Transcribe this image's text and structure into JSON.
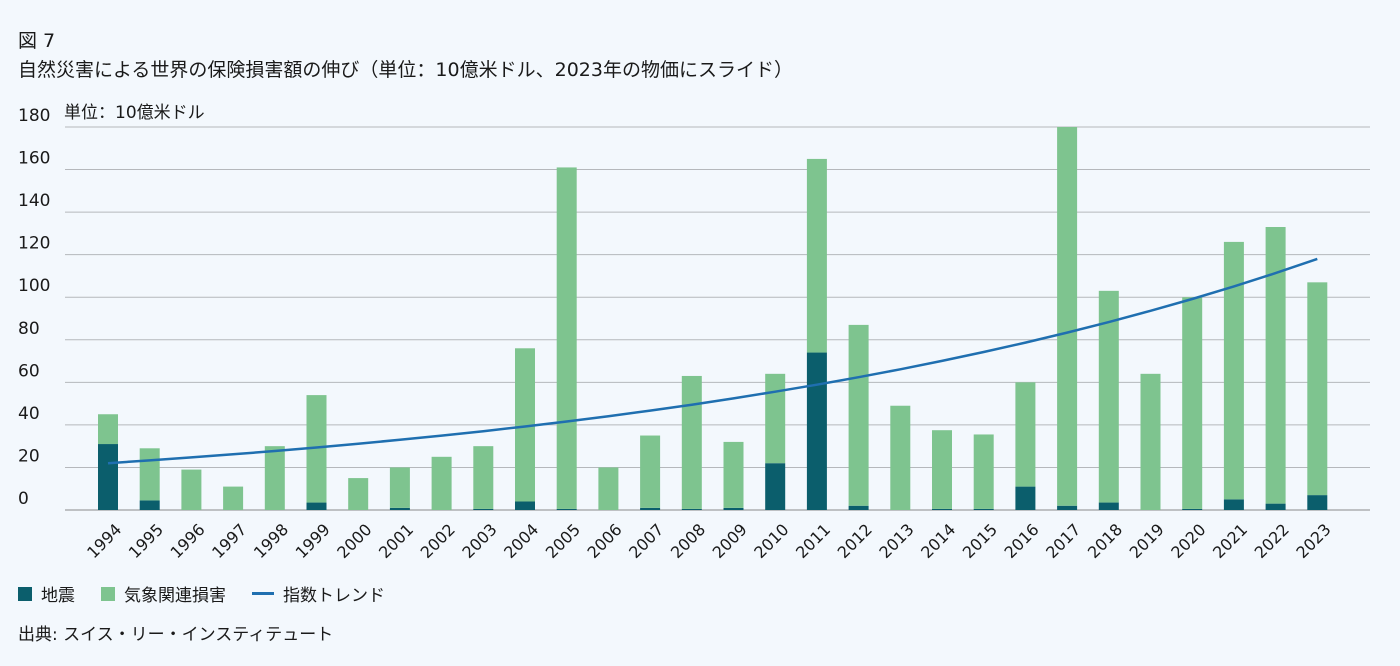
{
  "figure_label": "図 7",
  "title": "自然災害による世界の保険損害額の伸び（単位：10億米ドル、2023年の物価にスライド）",
  "source": "出典: スイス・リー・インスティテュート",
  "chart_data": {
    "type": "bar",
    "stacked": true,
    "unit_label": "単位：10億米ドル",
    "ylim": [
      0,
      180
    ],
    "yticks": [
      0,
      20,
      40,
      60,
      80,
      100,
      120,
      140,
      160,
      180
    ],
    "grid": true,
    "legend_position": "bottom-left",
    "categories": [
      "1994",
      "1995",
      "1996",
      "1997",
      "1998",
      "1999",
      "2000",
      "2001",
      "2002",
      "2003",
      "2004",
      "2005",
      "2006",
      "2007",
      "2008",
      "2009",
      "2010",
      "2011",
      "2012",
      "2013",
      "2014",
      "2015",
      "2016",
      "2017",
      "2018",
      "2019",
      "2020",
      "2021",
      "2022",
      "2023"
    ],
    "series": [
      {
        "name": "地震",
        "color": "#0b5e6c",
        "values": [
          31,
          4.5,
          0,
          0,
          0,
          3.5,
          0,
          1,
          0,
          0.5,
          4,
          0.5,
          0,
          1,
          0.5,
          1,
          22,
          74,
          2,
          0,
          0.5,
          0.5,
          11,
          2,
          3.5,
          0,
          0.5,
          5,
          3,
          7
        ]
      },
      {
        "name": "気象関連損害",
        "color": "#7ec48f",
        "values": [
          14,
          24.5,
          19,
          11,
          30,
          50.5,
          15,
          19,
          25,
          29.5,
          72,
          160.5,
          20,
          34,
          62.5,
          31,
          42,
          91,
          85,
          49,
          37,
          35,
          49,
          178,
          99.5,
          64,
          99.5,
          121,
          130,
          100
        ]
      },
      {
        "name": "指数トレンド",
        "color": "#1f6fb0",
        "type": "line",
        "start": 22,
        "end": 118
      }
    ]
  }
}
